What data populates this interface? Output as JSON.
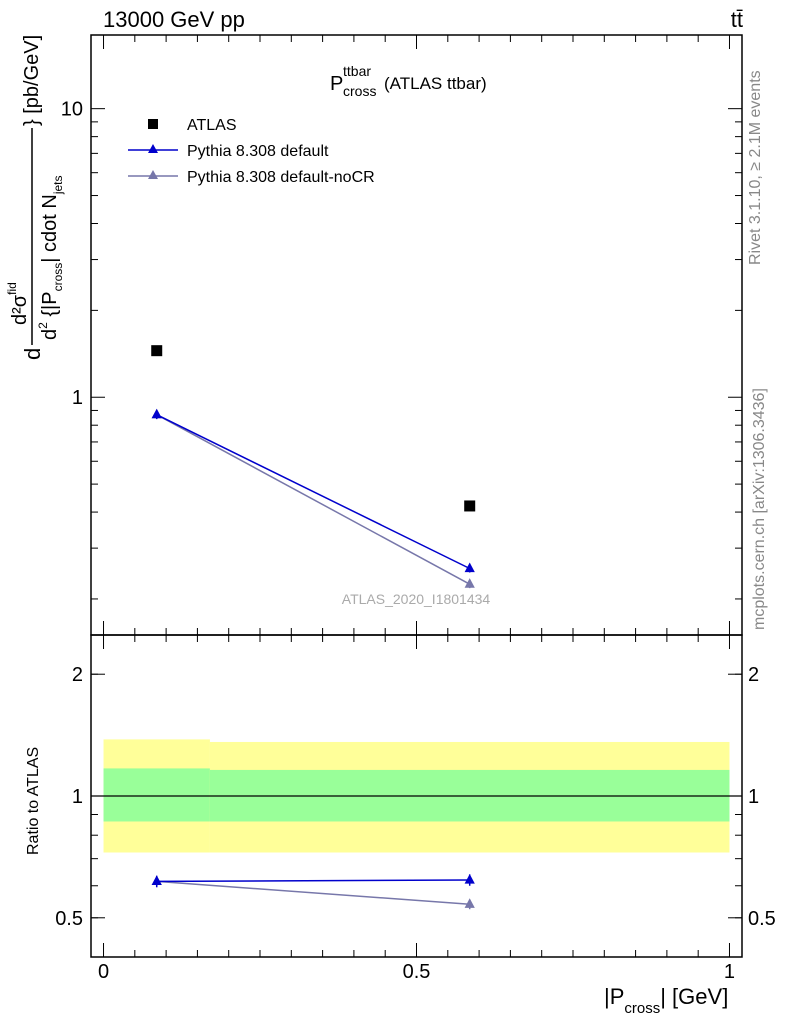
{
  "header": {
    "energy_label": "13000 GeV pp",
    "process_label": "tt̄"
  },
  "title": {
    "main": "P",
    "sup": "ttbar",
    "sub": "cross",
    "suffix": "(ATLAS ttbar)"
  },
  "side_labels": {
    "rivet": "Rivet 3.1.10, ≥ 2.1M events",
    "mcplots": "mcplots.cern.ch [arXiv:1306.3436]"
  },
  "watermark": "ATLAS_2020_I1801434",
  "axes": {
    "ylabel_main": "d²σᶦᵈ / d²{|P_cross| cdot N_jets} [pb/GeV]",
    "ylabel_ratio": "Ratio to ATLAS",
    "xlabel": "|P_cross| [GeV]",
    "main_yticks": [
      "1",
      "10"
    ],
    "ratio_yticks": [
      "0.5",
      "1",
      "2"
    ],
    "xticks": [
      "0",
      "0.5",
      "1"
    ]
  },
  "legend": {
    "atlas": "ATLAS",
    "default": "Pythia 8.308 default",
    "nocr": "Pythia 8.308 default-noCR"
  },
  "colors": {
    "data": "#000000",
    "default": "#0000cc",
    "nocr": "#7777aa",
    "band_inner": "#99ff99",
    "band_outer": "#ffff99"
  },
  "chart_data": [
    {
      "type": "scatter",
      "yscale": "log",
      "xlim": [
        -0.02,
        1.02
      ],
      "ylim": [
        0.15,
        18
      ],
      "series": [
        {
          "name": "ATLAS",
          "x": [
            0.085,
            0.585
          ],
          "y": [
            1.45,
            0.42
          ]
        },
        {
          "name": "Pythia 8.308 default",
          "x": [
            0.085,
            0.585
          ],
          "y": [
            0.87,
            0.255
          ],
          "yerr": [
            0.03,
            0.008
          ]
        },
        {
          "name": "Pythia 8.308 default-noCR",
          "x": [
            0.085,
            0.585
          ],
          "y": [
            0.87,
            0.225
          ],
          "yerr": [
            0.03,
            0.007
          ]
        }
      ],
      "legend_position": "top-left"
    },
    {
      "type": "line",
      "yscale": "log",
      "xlim": [
        -0.02,
        1.02
      ],
      "ylim": [
        0.4,
        2.5
      ],
      "ylabel": "Ratio to ATLAS",
      "reference_line": 1.0,
      "uncertainty_bands": [
        {
          "x_from": 0.0,
          "x_to": 0.17,
          "inner": [
            0.865,
            1.17
          ],
          "outer": [
            0.725,
            1.38
          ]
        },
        {
          "x_from": 0.17,
          "x_to": 1.0,
          "inner": [
            0.865,
            1.16
          ],
          "outer": [
            0.725,
            1.36
          ]
        }
      ],
      "series": [
        {
          "name": "Pythia 8.308 default",
          "x": [
            0.085,
            0.585
          ],
          "y": [
            0.615,
            0.62
          ],
          "yerr": [
            0.02,
            0.02
          ]
        },
        {
          "name": "Pythia 8.308 default-noCR",
          "x": [
            0.085,
            0.585
          ],
          "y": [
            0.615,
            0.54
          ],
          "yerr": [
            0.02,
            0.015
          ]
        }
      ]
    }
  ]
}
